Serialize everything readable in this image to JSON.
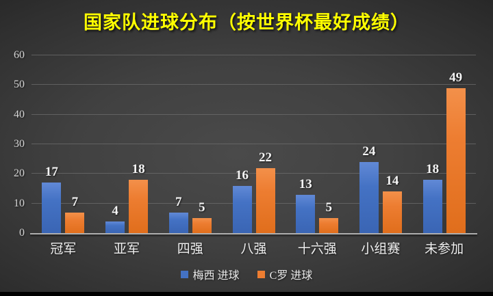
{
  "chart_data": {
    "type": "bar",
    "title": "国家队进球分布（按世界杯最好成绩）",
    "title_color": "#FFFF00",
    "categories": [
      "冠军",
      "亚军",
      "四强",
      "八强",
      "十六强",
      "小组赛",
      "未参加"
    ],
    "series": [
      {
        "name": "梅西 进球",
        "color": "#4472C4",
        "values": [
          17,
          4,
          7,
          16,
          13,
          24,
          18
        ]
      },
      {
        "name": "C罗 进球",
        "color": "#ED7D31",
        "values": [
          7,
          18,
          5,
          22,
          5,
          14,
          49
        ]
      }
    ],
    "xlabel": "",
    "ylabel": "",
    "ylim": [
      0,
      60
    ],
    "yticks": [
      0,
      10,
      20,
      30,
      40,
      50,
      60
    ],
    "grid": true,
    "data_labels": true,
    "legend_position": "bottom",
    "background": "dark-gradient",
    "bar_colors": {
      "messi_blue": "#4472C4",
      "ronaldo_orange": "#ED7D31"
    },
    "gridline_color": "#6E6E6E",
    "axis_line_color": "#AEAEAE",
    "label_color": "#F5F5F5"
  }
}
